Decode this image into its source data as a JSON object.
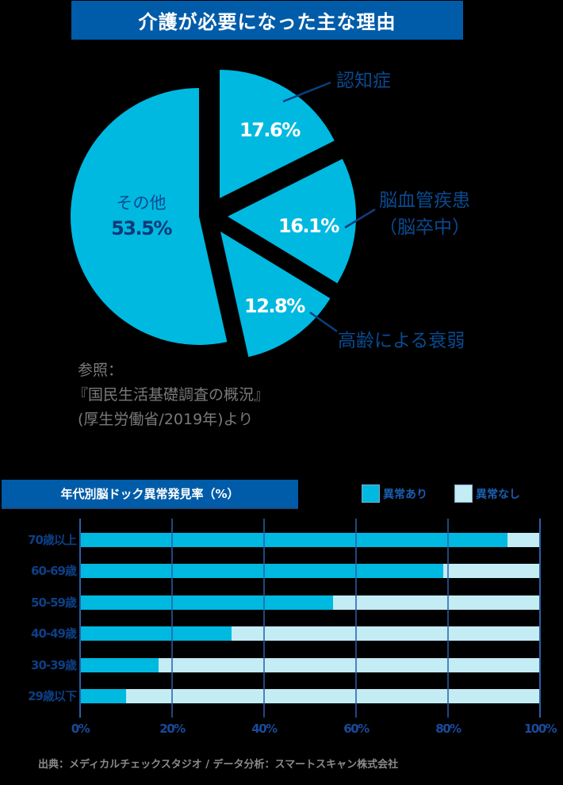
{
  "pie_section": {
    "title": "介護が必要になった主な理由",
    "slices": [
      {
        "label": "その他",
        "value_label": "53.5%"
      },
      {
        "label": "認知症",
        "value_label": "17.6%"
      },
      {
        "label": "脳血管疾患",
        "label_line2": "（脳卒中）",
        "value_label": "16.1%"
      },
      {
        "label": "高齢による衰弱",
        "value_label": "12.8%"
      }
    ],
    "reference": {
      "line1": "参照：",
      "line2": "『国民生活基礎調査の概況』",
      "line3": "(厚生労働省/2019年)より"
    }
  },
  "bar_section": {
    "title": "年代別脳ドック異常発見率（%）",
    "legend": [
      {
        "label": "異常あり",
        "color": "#00b9e0"
      },
      {
        "label": "異常なし",
        "color": "#c3ecf5"
      }
    ],
    "rows": [
      {
        "label": "70歳以上",
        "abnormal": 93
      },
      {
        "label": "60-69歳",
        "abnormal": 79
      },
      {
        "label": "50-59歳",
        "abnormal": 55
      },
      {
        "label": "40-49歳",
        "abnormal": 33
      },
      {
        "label": "30-39歳",
        "abnormal": 17
      },
      {
        "label": "29歳以下",
        "abnormal": 10
      }
    ],
    "ticks": [
      "0%",
      "20%",
      "40%",
      "60%",
      "80%",
      "100%"
    ],
    "source": "出典：メディカルチェックスタジオ / データ分析：スマートスキャン株式会社"
  },
  "colors": {
    "banner": "#005ca8",
    "pie": "#00b9e0",
    "abnormal": "#00b9e0",
    "normal": "#c3ecf5",
    "gridline": "#2a5fa8",
    "label_text": "#0a4a8f"
  },
  "chart_data": [
    {
      "type": "pie",
      "title": "介護が必要になった主な理由",
      "categories": [
        "その他",
        "認知症",
        "脳血管疾患（脳卒中）",
        "高齢による衰弱"
      ],
      "values": [
        53.5,
        17.6,
        16.1,
        12.8
      ],
      "unit": "%",
      "exploded": [
        "認知症",
        "脳血管疾患（脳卒中）",
        "高齢による衰弱"
      ],
      "annotation": "参照：『国民生活基礎調査の概況』(厚生労働省/2019年)より"
    },
    {
      "type": "bar",
      "orientation": "horizontal",
      "stacked": true,
      "title": "年代別脳ドック異常発見率（%）",
      "categories": [
        "70歳以上",
        "60-69歳",
        "50-59歳",
        "40-49歳",
        "30-39歳",
        "29歳以下"
      ],
      "series": [
        {
          "name": "異常あり",
          "values": [
            93,
            79,
            55,
            33,
            17,
            10
          ]
        },
        {
          "name": "異常なし",
          "values": [
            7,
            21,
            45,
            67,
            83,
            90
          ]
        }
      ],
      "xlabel": "",
      "ylabel": "",
      "xlim": [
        0,
        100
      ],
      "xticks": [
        "0%",
        "20%",
        "40%",
        "60%",
        "80%",
        "100%"
      ],
      "grid": true,
      "legend_position": "top-right",
      "source": "出典：メディカルチェックスタジオ / データ分析：スマートスキャン株式会社"
    }
  ]
}
